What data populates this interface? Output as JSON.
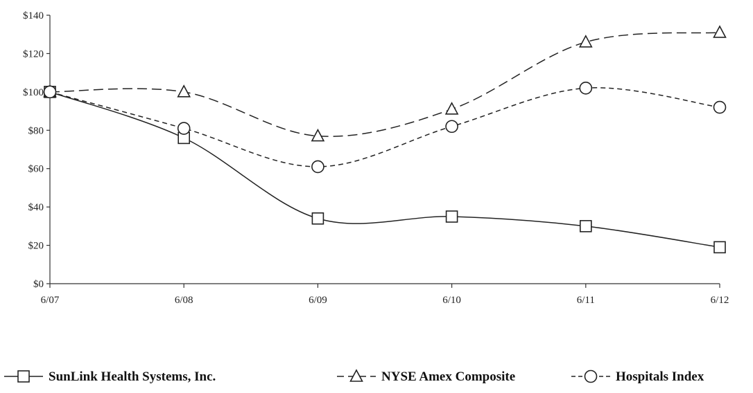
{
  "chart_data": {
    "type": "line",
    "title": "",
    "xlabel": "",
    "ylabel": "",
    "categories": [
      "6/07",
      "6/08",
      "6/09",
      "6/10",
      "6/11",
      "6/12"
    ],
    "ylim": [
      0,
      140
    ],
    "yticks": [
      0,
      20,
      40,
      60,
      80,
      100,
      120,
      140
    ],
    "ytick_labels": [
      "$0",
      "$20",
      "$40",
      "$60",
      "$80",
      "$100",
      "$120",
      "$140"
    ],
    "grid": false,
    "legend_position": "bottom",
    "series": [
      {
        "name": "SunLink Health Systems, Inc.",
        "values": [
          100,
          76,
          34,
          35,
          30,
          19
        ],
        "marker": "square",
        "line_style": "solid",
        "color": "#222222"
      },
      {
        "name": "NYSE Amex Composite",
        "values": [
          100,
          100,
          77,
          91,
          126,
          131
        ],
        "marker": "triangle",
        "line_style": "long-dash",
        "color": "#222222"
      },
      {
        "name": "Hospitals Index",
        "values": [
          100,
          81,
          61,
          82,
          102,
          92
        ],
        "marker": "circle",
        "line_style": "short-dash",
        "color": "#222222"
      }
    ]
  }
}
